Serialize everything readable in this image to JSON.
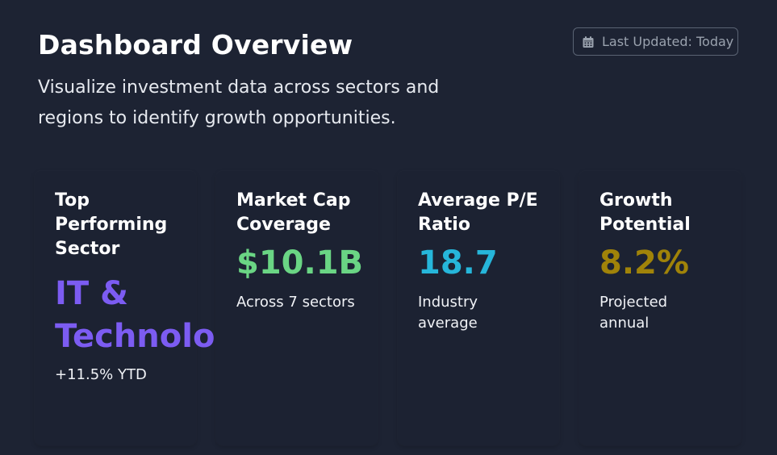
{
  "header": {
    "title": "Dashboard Overview",
    "subtitle": "Visualize investment data across sectors and regions to identify growth opportunities.",
    "last_updated": "Last Updated: Today",
    "last_updated_icon": "calendar-icon"
  },
  "cards": [
    {
      "label": "Top Performing Sector",
      "value": "IT & Technology",
      "note": "+11.5% YTD",
      "color": "#7c5cf2"
    },
    {
      "label": "Market Cap Coverage",
      "value": "$10.1B",
      "note": "Across 7 sectors",
      "color": "#6ad584"
    },
    {
      "label": "Average P/E Ratio",
      "value": "18.7",
      "note": "Industry average",
      "color": "#26b6da"
    },
    {
      "label": "Growth Potential",
      "value": "8.2%",
      "note": "Projected annual",
      "color": "#a08309"
    }
  ]
}
